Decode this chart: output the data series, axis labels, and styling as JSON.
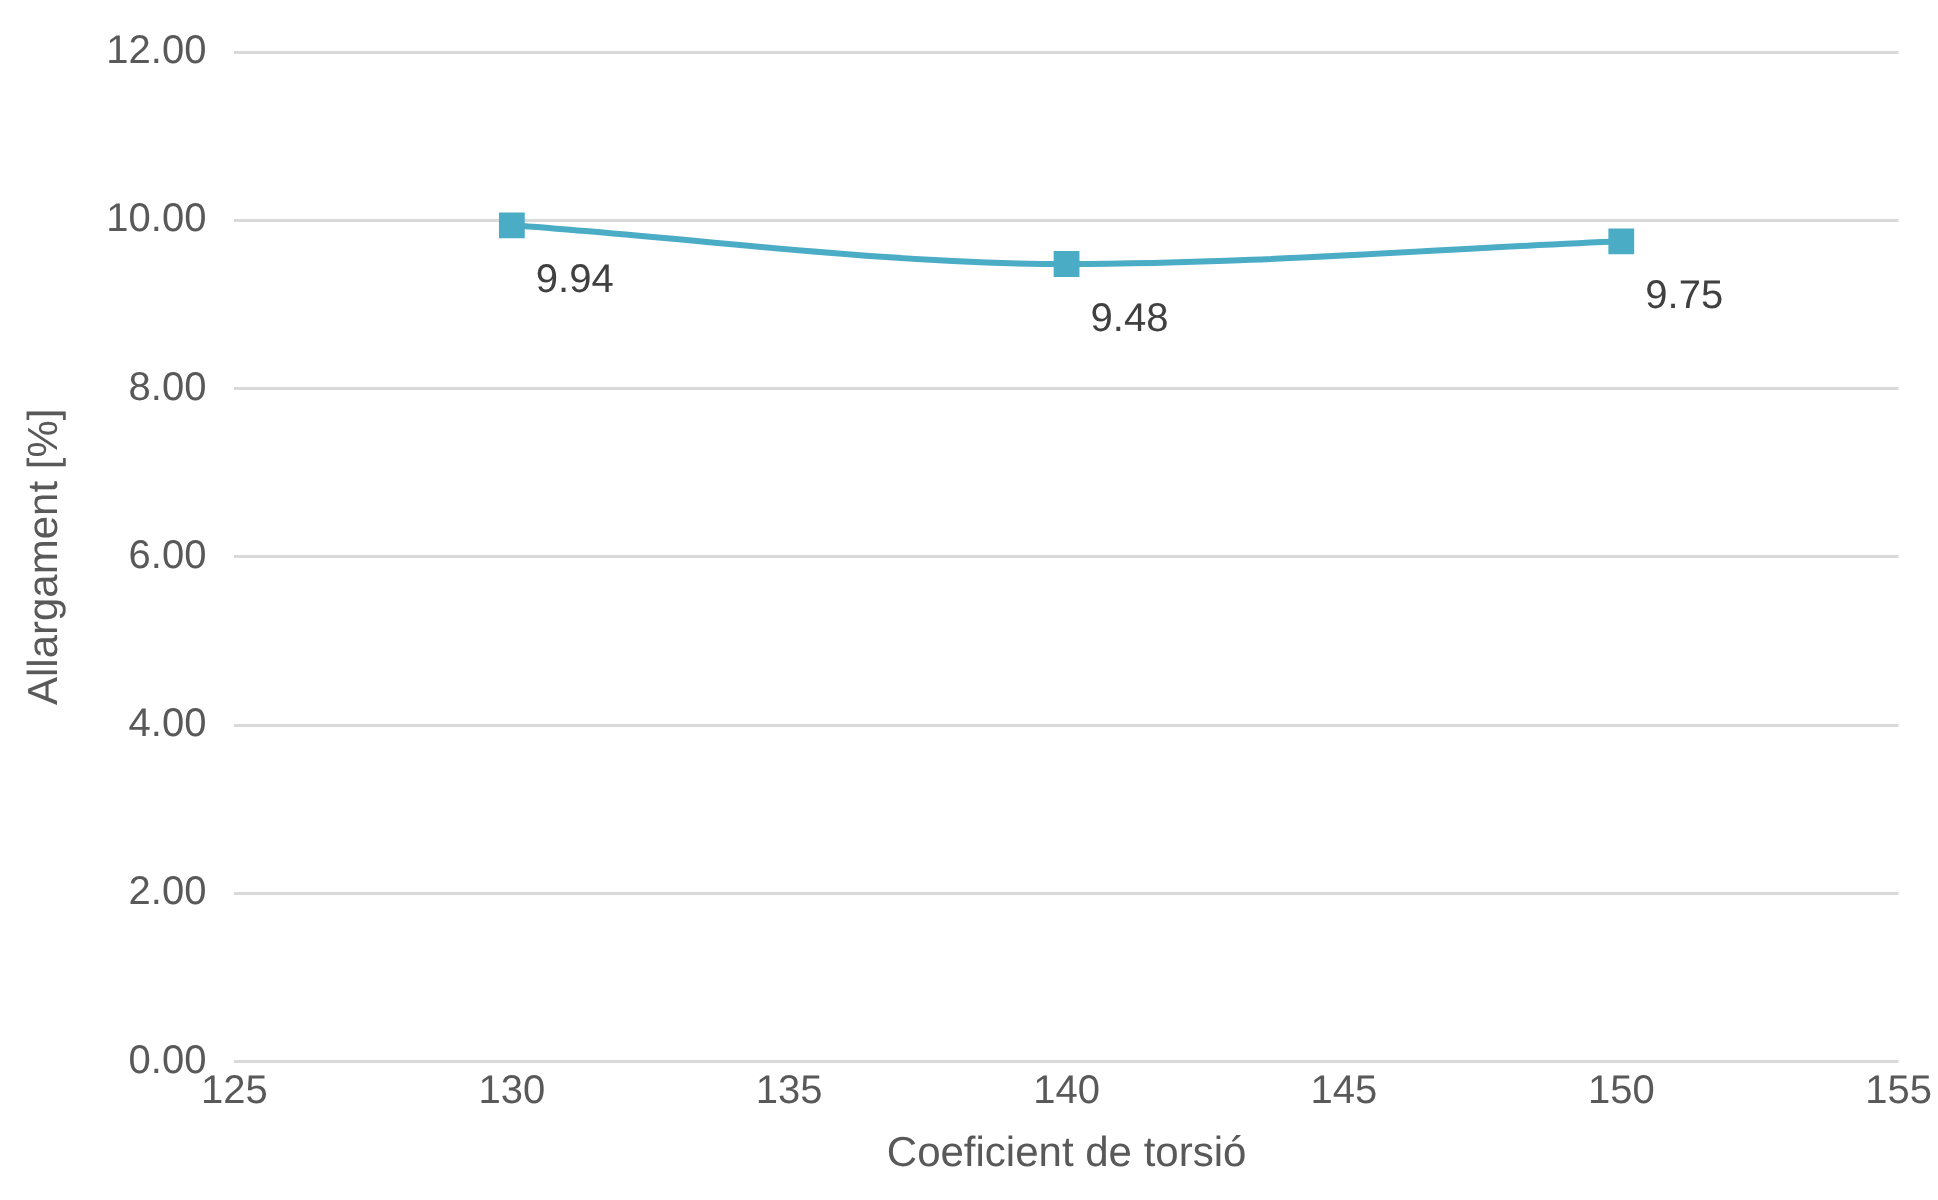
{
  "chart_data": {
    "type": "line",
    "xlabel": "Coeficient de torsió",
    "ylabel": "Allargament [%]",
    "x": [
      130,
      140,
      150
    ],
    "series": [
      {
        "color": "#4bacc6",
        "values": [
          9.94,
          9.48,
          9.75
        ]
      }
    ],
    "xlim": [
      125,
      155
    ],
    "xticks": [
      125,
      130,
      135,
      140,
      145,
      150,
      155
    ],
    "ylim": [
      0,
      12
    ],
    "yticks": [
      {
        "value": 0,
        "label": "0.00"
      },
      {
        "value": 2,
        "label": "2.00"
      },
      {
        "value": 4,
        "label": "4.00"
      },
      {
        "value": 6,
        "label": "6.00"
      },
      {
        "value": 8,
        "label": "8.00"
      },
      {
        "value": 10,
        "label": "10.00"
      },
      {
        "value": 12,
        "label": "12.00"
      }
    ],
    "grid": "y",
    "legend": false,
    "marker": "square",
    "line_style": "solid",
    "data_labels": true
  }
}
